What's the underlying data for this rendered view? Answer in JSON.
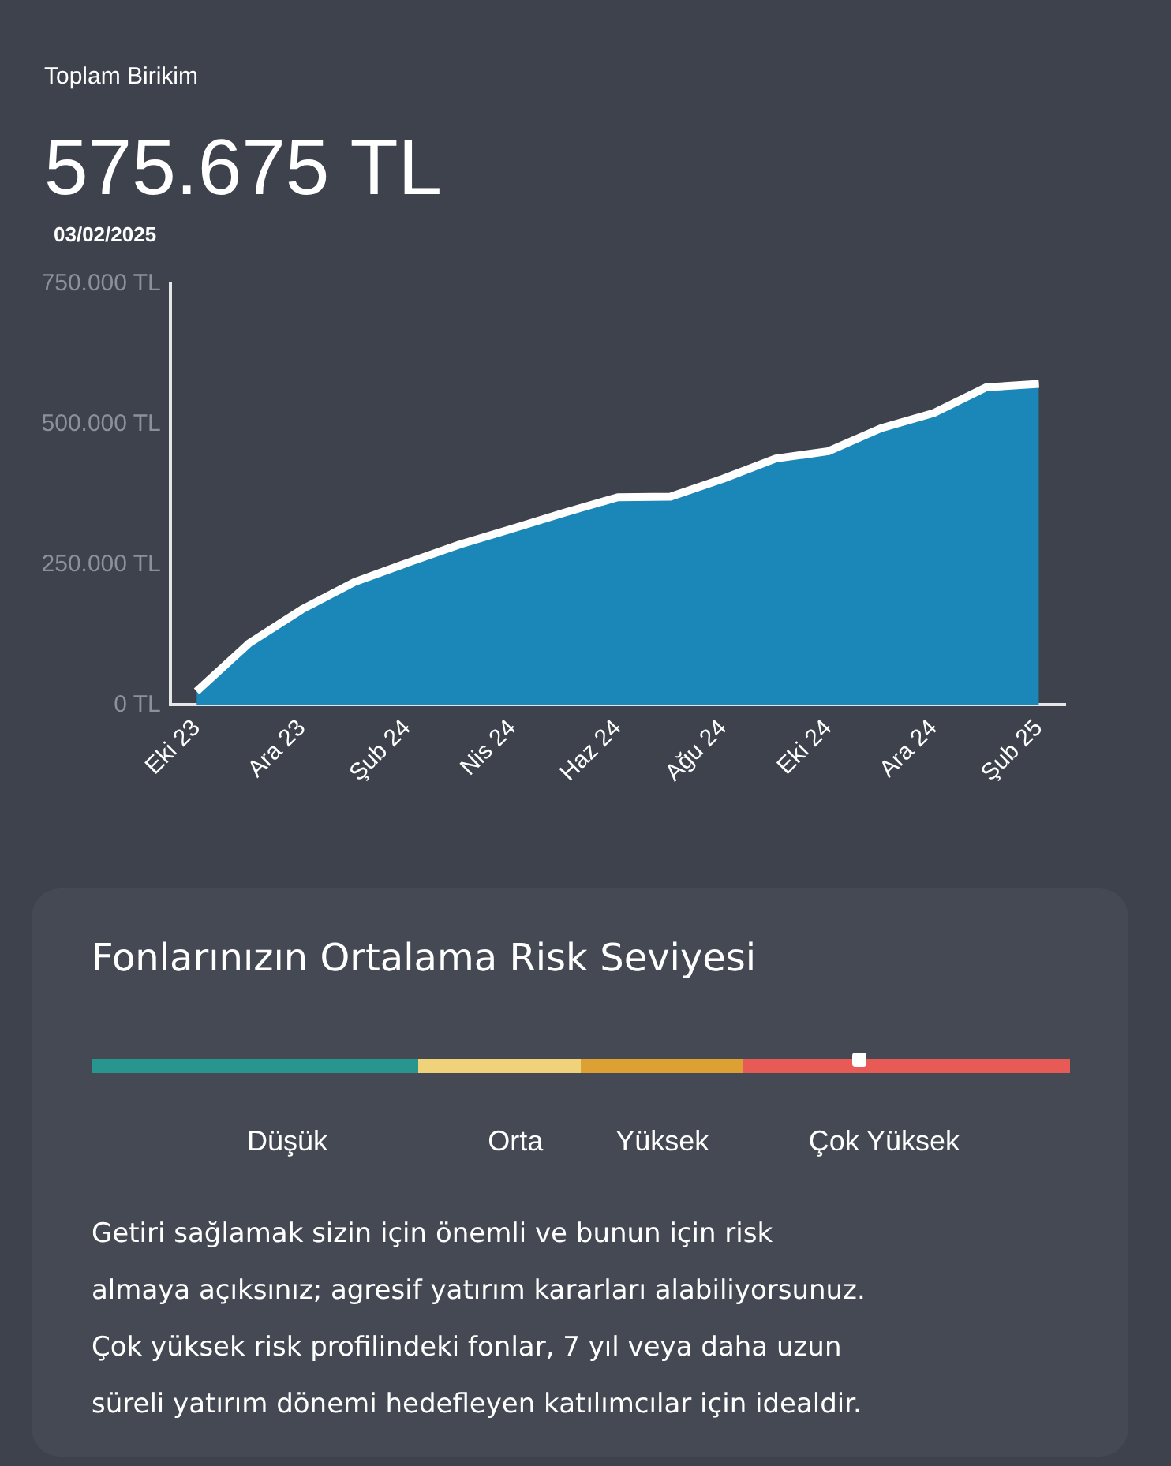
{
  "chart_data": [
    {
      "type": "area",
      "title": "Toplam Birikim",
      "subtitle": "575.675 TL",
      "annotations": [
        "03/02/2025"
      ],
      "categories": [
        "Eki 23",
        null,
        "Ara 23",
        null,
        "Şub 24",
        null,
        "Nis 24",
        null,
        "Haz 24",
        null,
        "Ağu 24",
        null,
        "Eki 24",
        null,
        "Ara 24",
        null,
        "Şub 25"
      ],
      "series": [
        {
          "color": "#1a87b8",
          "values": [
            24000,
            110000,
            170000,
            219000,
            253000,
            286000,
            314000,
            343000,
            370000,
            371000,
            403000,
            439000,
            452000,
            493000,
            520000,
            566000,
            572000
          ]
        }
      ],
      "ylim": [
        0,
        750000
      ],
      "yticks": [
        {
          "value": 0,
          "label": "0 TL"
        },
        {
          "value": 250000,
          "label": "250.000 TL"
        },
        {
          "value": 500000,
          "label": "500.000 TL"
        },
        {
          "value": 750000,
          "label": "750.000 TL"
        }
      ],
      "grid": false,
      "legend": false
    },
    {
      "type": "other",
      "title": "Fonlarınızın Ortalama Risk Seviyesi",
      "categories": [
        "Düşük",
        "Orta",
        "Yüksek",
        "Çok Yüksek"
      ],
      "annotations": [
        "Getiri sağlamak sizin için önemli ve bunun için risk",
        "almaya açıksınız; agresif yatırım kararları alabiliyorsunuz.",
        "Çok yüksek risk profilindeki fonlar, 7 yıl veya daha uzun",
        "süreli yatırım dönemi hedefleyen katılımcılar için idealdir."
      ]
    }
  ]
}
